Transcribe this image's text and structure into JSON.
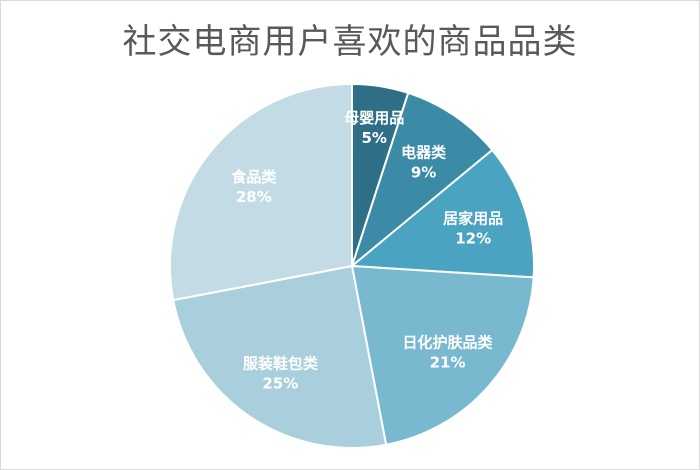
{
  "chart_data": {
    "type": "pie",
    "title": "社交电商用户喜欢的商品品类",
    "slices": [
      {
        "label": "母婴用品",
        "value": 5,
        "value_text": "5%",
        "color": "#2e6e86"
      },
      {
        "label": "电器类",
        "value": 9,
        "value_text": "9%",
        "color": "#3b8aa6"
      },
      {
        "label": "居家用品",
        "value": 12,
        "value_text": "12%",
        "color": "#4aa3c0"
      },
      {
        "label": "日化护肤品类",
        "value": 21,
        "value_text": "21%",
        "color": "#79b9d0"
      },
      {
        "label": "服装鞋包类",
        "value": 25,
        "value_text": "25%",
        "color": "#a9cfdd"
      },
      {
        "label": "食品类",
        "value": 28,
        "value_text": "28%",
        "color": "#c3dbe5"
      }
    ],
    "start_angle_deg": 0,
    "direction": "clockwise",
    "legend": "none"
  }
}
